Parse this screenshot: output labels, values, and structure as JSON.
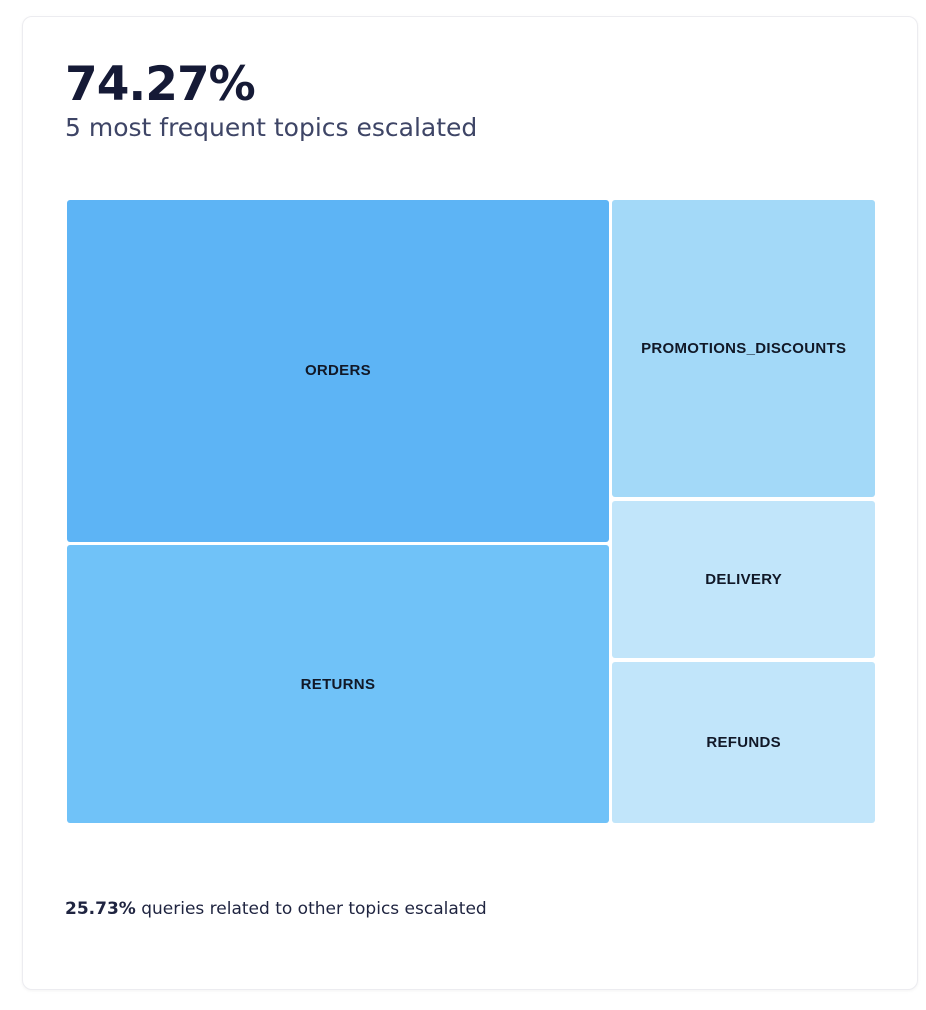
{
  "header": {
    "value": "74.27%",
    "subtitle": "5 most frequent topics escalated"
  },
  "footer": {
    "value": "25.73%",
    "text": " queries related to other topics escalated"
  },
  "chart_data": {
    "type": "treemap",
    "items": [
      {
        "label": "ORDERS",
        "share": 37.4,
        "color": "#5db4f5"
      },
      {
        "label": "RETURNS",
        "share": 30.1,
        "color": "#70c2f8"
      },
      {
        "label": "PROMOTIONS_DISCOUNTS",
        "share": 15.7,
        "color": "#a3d9f8"
      },
      {
        "label": "DELIVERY",
        "share": 8.4,
        "color": "#c1e5fa"
      },
      {
        "label": "REFUNDS",
        "share": 8.4,
        "color": "#c1e5fa"
      }
    ]
  }
}
